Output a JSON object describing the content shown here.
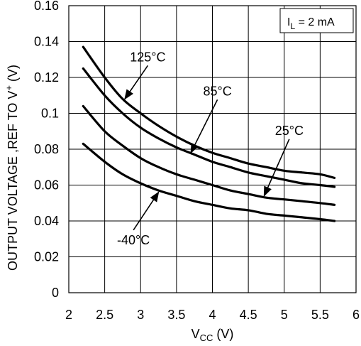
{
  "chart_data": {
    "type": "line",
    "xlabel": {
      "main": "V",
      "sub": "CC",
      "unit": " (V)"
    },
    "ylabel": {
      "main": "OUTPUT VOLTAGE ,REF TO V",
      "sup": "+",
      "unit": " (V)"
    },
    "xlim": [
      2,
      6
    ],
    "ylim": [
      0,
      0.16
    ],
    "x_ticks": [
      "2",
      "2.5",
      "3",
      "3.5",
      "4",
      "4.5",
      "5",
      "5.5",
      "6"
    ],
    "y_ticks": [
      "0",
      "0.02",
      "0.04",
      "0.06",
      "0.08",
      "0.1",
      "0.12",
      "0.14",
      "0.16"
    ],
    "grid": true,
    "condition_label": {
      "main": "I",
      "sub": "L",
      "rest": " = 2 mA"
    },
    "series": [
      {
        "name": "125°C",
        "x": [
          2.2,
          2.5,
          2.75,
          3.0,
          3.25,
          3.5,
          3.75,
          4.0,
          4.25,
          4.5,
          4.75,
          5.0,
          5.25,
          5.5,
          5.7
        ],
        "y": [
          0.137,
          0.12,
          0.108,
          0.1,
          0.093,
          0.087,
          0.082,
          0.078,
          0.075,
          0.072,
          0.07,
          0.068,
          0.067,
          0.066,
          0.064
        ]
      },
      {
        "name": "85°C",
        "x": [
          2.2,
          2.5,
          2.75,
          3.0,
          3.25,
          3.5,
          3.75,
          4.0,
          4.25,
          4.5,
          4.75,
          5.0,
          5.25,
          5.5,
          5.7
        ],
        "y": [
          0.125,
          0.11,
          0.1,
          0.092,
          0.086,
          0.081,
          0.077,
          0.073,
          0.07,
          0.067,
          0.065,
          0.063,
          0.061,
          0.06,
          0.059
        ]
      },
      {
        "name": "25°C",
        "x": [
          2.2,
          2.5,
          2.75,
          3.0,
          3.25,
          3.5,
          3.75,
          4.0,
          4.25,
          4.5,
          4.75,
          5.0,
          5.25,
          5.5,
          5.7
        ],
        "y": [
          0.104,
          0.09,
          0.082,
          0.075,
          0.07,
          0.066,
          0.063,
          0.06,
          0.057,
          0.055,
          0.053,
          0.052,
          0.051,
          0.05,
          0.049
        ]
      },
      {
        "name": "-40°C",
        "x": [
          2.2,
          2.5,
          2.75,
          3.0,
          3.25,
          3.5,
          3.75,
          4.0,
          4.25,
          4.5,
          4.75,
          5.0,
          5.25,
          5.5,
          5.7
        ],
        "y": [
          0.083,
          0.073,
          0.066,
          0.061,
          0.057,
          0.054,
          0.051,
          0.049,
          0.047,
          0.046,
          0.044,
          0.043,
          0.042,
          0.041,
          0.04
        ]
      }
    ],
    "annotations": [
      {
        "series": "125°C",
        "text": "125°C",
        "text_at": [
          3.1,
          0.129
        ],
        "arrow_to": [
          2.78,
          0.108
        ]
      },
      {
        "series": "85°C",
        "text": "85°C",
        "text_at": [
          4.07,
          0.11
        ],
        "arrow_to": [
          3.7,
          0.078
        ]
      },
      {
        "series": "25°C",
        "text": "25°C",
        "text_at": [
          5.07,
          0.088
        ],
        "arrow_to": [
          4.72,
          0.054
        ]
      },
      {
        "series": "-40°C",
        "text": "-40°C",
        "text_at": [
          2.9,
          0.027
        ],
        "arrow_to": [
          3.25,
          0.056
        ]
      }
    ]
  }
}
